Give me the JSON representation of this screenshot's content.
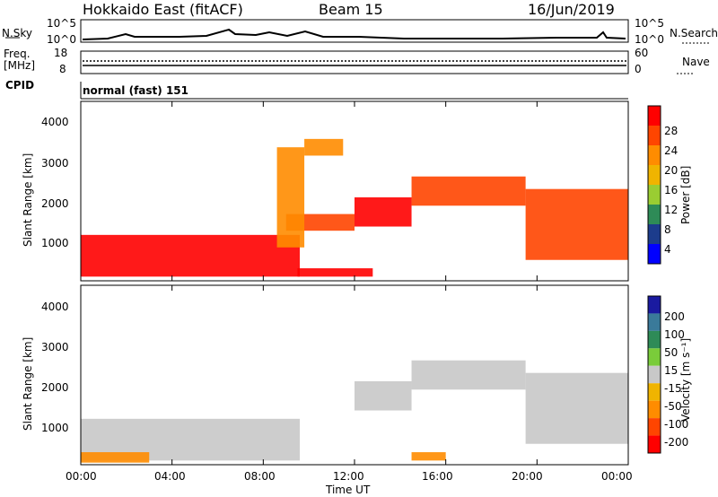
{
  "header": {
    "radar": "Hokkaido East (fitACF)",
    "beam": "Beam 15",
    "date": "16/Jun/2019"
  },
  "noise_panel": {
    "left_label": "N.Sky",
    "right_label": "N.Search",
    "left_ticks": [
      "10^5",
      "10^0"
    ],
    "right_ticks": [
      "10^5",
      "10^0"
    ]
  },
  "freq_panel": {
    "left_label_line1": "Freq.",
    "left_label_line2": "[MHz]",
    "left_ticks": [
      "18",
      "8"
    ],
    "right_label": "Nave",
    "right_ticks": [
      "60",
      "0"
    ]
  },
  "cpid_panel": {
    "label": "CPID",
    "value": "normal (fast) 151"
  },
  "power_panel": {
    "ylabel": "Slant Range [km]",
    "yticks": [
      "4000",
      "3000",
      "2000",
      "1000"
    ],
    "colorbar_label": "Power [dB]",
    "colorbar_ticks": [
      "28",
      "24",
      "20",
      "16",
      "12",
      "8",
      "4"
    ],
    "colors": [
      "#ff0000",
      "#ff4500",
      "#ff8c00",
      "#f0b400",
      "#9acd32",
      "#2e8b57",
      "#1c3c8c",
      "#0000ff"
    ]
  },
  "velocity_panel": {
    "ylabel": "Slant Range [km]",
    "yticks": [
      "4000",
      "3000",
      "2000",
      "1000"
    ],
    "colorbar_label": "Velocity [m s⁻¹]",
    "colorbar_ticks": [
      "200",
      "100",
      "50",
      "15",
      "-15",
      "-50",
      "-100",
      "-200"
    ],
    "colors": [
      "#1a1aa0",
      "#3a7a9a",
      "#2e8b57",
      "#7acc3a",
      "#c8c8c8",
      "#f0b400",
      "#ff8c00",
      "#ff4500",
      "#ff0000"
    ]
  },
  "x_axis": {
    "label": "Time UT",
    "ticks": [
      "00:00",
      "04:00",
      "08:00",
      "12:00",
      "16:00",
      "20:00",
      "00:00"
    ]
  },
  "chart_data": [
    {
      "type": "heatmap",
      "title": "Hokkaido East (fitACF) Beam 15 16/Jun/2019",
      "quantity": "Power [dB]",
      "xlabel": "Time UT",
      "ylabel": "Slant Range [km]",
      "xlim": [
        "00:00",
        "24:00"
      ],
      "ylim": [
        200,
        4500
      ],
      "bands": [
        {
          "t_start": 0.0,
          "t_end": 9.6,
          "range_low": 300,
          "range_high": 1300,
          "power_db": 26
        },
        {
          "t_start": 9.0,
          "t_end": 12.0,
          "range_low": 1400,
          "range_high": 1800,
          "power_db": 24
        },
        {
          "t_start": 12.0,
          "t_end": 14.5,
          "range_low": 1500,
          "range_high": 2200,
          "power_db": 26
        },
        {
          "t_start": 14.5,
          "t_end": 19.5,
          "range_low": 2000,
          "range_high": 2700,
          "power_db": 24
        },
        {
          "t_start": 19.5,
          "t_end": 24.0,
          "range_low": 700,
          "range_high": 2400,
          "power_db": 22
        },
        {
          "t_start": 8.6,
          "t_end": 9.8,
          "range_low": 1000,
          "range_high": 3400,
          "power_db": 20
        },
        {
          "t_start": 9.8,
          "t_end": 11.5,
          "range_low": 3200,
          "range_high": 3600,
          "power_db": 18
        },
        {
          "t_start": 9.5,
          "t_end": 12.8,
          "range_low": 300,
          "range_high": 500,
          "power_db": 26
        }
      ]
    },
    {
      "type": "heatmap",
      "title": "Hokkaido East (fitACF) Beam 15 16/Jun/2019",
      "quantity": "Velocity [m s-1]",
      "xlabel": "Time UT",
      "ylabel": "Slant Range [km]",
      "xlim": [
        "00:00",
        "24:00"
      ],
      "ylim": [
        200,
        4500
      ],
      "bands": [
        {
          "t_start": 0.0,
          "t_end": 9.6,
          "range_low": 300,
          "range_high": 1300,
          "velocity": 0
        },
        {
          "t_start": 12.0,
          "t_end": 14.5,
          "range_low": 1500,
          "range_high": 2200,
          "velocity": 0
        },
        {
          "t_start": 14.5,
          "t_end": 19.5,
          "range_low": 2000,
          "range_high": 2700,
          "velocity": 0
        },
        {
          "t_start": 19.5,
          "t_end": 24.0,
          "range_low": 700,
          "range_high": 2400,
          "velocity": 0
        },
        {
          "t_start": 0.0,
          "t_end": 3.0,
          "range_low": 250,
          "range_high": 500,
          "velocity": -50
        },
        {
          "t_start": 14.5,
          "t_end": 16.0,
          "range_low": 300,
          "range_high": 500,
          "velocity": -50
        }
      ]
    }
  ]
}
